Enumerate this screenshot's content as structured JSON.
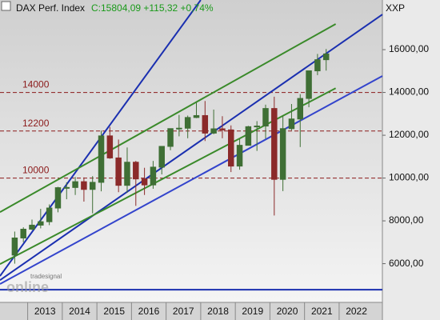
{
  "chart_data": {
    "type": "candlestick",
    "title": "DAX Perf. Index",
    "subtitle": "C:15804,09 +115,32 +0,74%",
    "y_label": "XXP",
    "logo": [
      "tradesignal",
      "online"
    ],
    "x": [
      2012.625,
      2012.875,
      2013.125,
      2013.375,
      2013.625,
      2013.875,
      2014.125,
      2014.375,
      2014.625,
      2014.875,
      2015.125,
      2015.375,
      2015.625,
      2015.875,
      2016.125,
      2016.375,
      2016.625,
      2016.875,
      2017.125,
      2017.375,
      2017.625,
      2017.875,
      2018.125,
      2018.375,
      2018.625,
      2018.875,
      2019.125,
      2019.375,
      2019.625,
      2019.875,
      2020.125,
      2020.375,
      2020.625,
      2020.875,
      2021.125,
      2021.375,
      2021.625
    ],
    "open": [
      6400,
      7200,
      7610,
      7800,
      7960,
      8600,
      9550,
      9560,
      9830,
      9470,
      9800,
      11970,
      10940,
      9660,
      10740,
      9960,
      9680,
      10510,
      11480,
      12310,
      12330,
      12830,
      12920,
      12100,
      12300,
      12250,
      10560,
      11530,
      12400,
      12430,
      13250,
      9940,
      12310,
      12760,
      13720,
      15010,
      15530
    ],
    "high": [
      7500,
      7700,
      8060,
      8560,
      8770,
      9590,
      9800,
      10050,
      10030,
      10090,
      12220,
      12390,
      11800,
      11430,
      10800,
      10480,
      10800,
      11480,
      12310,
      12950,
      12920,
      13530,
      13600,
      13200,
      12890,
      12460,
      11820,
      12440,
      12660,
      13430,
      13800,
      12910,
      13460,
      13920,
      15010,
      15800,
      16030
    ],
    "low": [
      6000,
      7000,
      7570,
      7650,
      7800,
      8400,
      9010,
      9210,
      8900,
      8350,
      9380,
      10900,
      9340,
      9310,
      8700,
      9210,
      9500,
      10170,
      11300,
      11950,
      11860,
      12800,
      11730,
      12050,
      11860,
      10280,
      10390,
      11620,
      11270,
      11840,
      8250,
      9390,
      12230,
      11450,
      13310,
      14810,
      15020
    ],
    "close": [
      7200,
      7610,
      7800,
      7960,
      8600,
      9550,
      9560,
      9830,
      9470,
      9800,
      11970,
      10940,
      9660,
      10740,
      9960,
      9680,
      10510,
      11480,
      12310,
      12330,
      12830,
      12920,
      12100,
      12300,
      12250,
      10560,
      11530,
      12400,
      12430,
      13250,
      9940,
      12310,
      12760,
      13720,
      15010,
      15530,
      15800
    ],
    "up_color": "#3f6f35",
    "down_color": "#8b2a2a",
    "xlim": [
      2012.2,
      2023.25
    ],
    "ylim": [
      4190,
      18320
    ],
    "xticks": [
      2013,
      2014,
      2015,
      2016,
      2017,
      2018,
      2019,
      2020,
      2021,
      2022
    ],
    "yticks": [
      {
        "value": 6000,
        "label": "6000,00"
      },
      {
        "value": 8000,
        "label": "8000,00"
      },
      {
        "value": 10000,
        "label": "10000,00"
      },
      {
        "value": 12000,
        "label": "12000,00"
      },
      {
        "value": 14000,
        "label": "14000,00"
      },
      {
        "value": 16000,
        "label": "16000,00"
      }
    ],
    "hlines": [
      14000,
      12200,
      10000
    ],
    "hline_color": "#8b1a1a",
    "trendlines": [
      {
        "color": "#1a2fb0",
        "x": [
          2012.2,
          2018.0
        ],
        "y": [
          5420,
          18318
        ]
      },
      {
        "color": "#1a2fb0",
        "x": [
          2012.2,
          2023.25
        ],
        "y": [
          5230,
          17645
        ]
      },
      {
        "color": "#3344cc",
        "x": [
          2012.2,
          2023.25
        ],
        "y": [
          5050,
          14770
        ]
      },
      {
        "color": "#3a8a2a",
        "x": [
          2012.2,
          2021.9
        ],
        "y": [
          8410,
          17200
        ]
      },
      {
        "color": "#3a8a2a",
        "x": [
          2012.2,
          2021.9
        ],
        "y": [
          5980,
          14200
        ]
      },
      {
        "color": "#1a2fb0",
        "x": [
          2012.2,
          2023.25
        ],
        "y": [
          4785,
          4785
        ]
      }
    ]
  }
}
